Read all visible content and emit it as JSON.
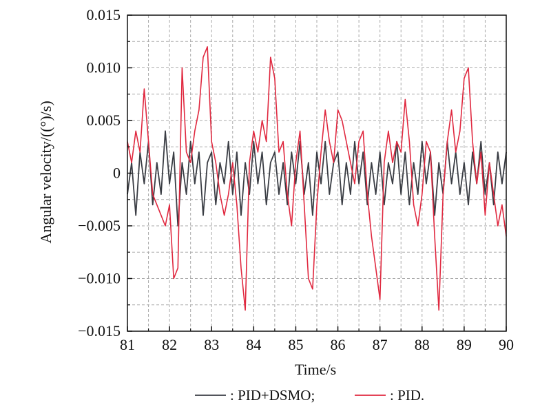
{
  "chart_data": {
    "type": "line",
    "xlabel": "Time/s",
    "ylabel": "Angular velocity/((°)/s)",
    "xlim": [
      81,
      90
    ],
    "ylim": [
      -0.015,
      0.015
    ],
    "x_ticks": [
      81,
      82,
      83,
      84,
      85,
      86,
      87,
      88,
      89,
      90
    ],
    "x_tick_labels": [
      "81",
      "82",
      "83",
      "84",
      "85",
      "86",
      "87",
      "88",
      "89",
      "90"
    ],
    "y_ticks": [
      0.015,
      0.01,
      0.005,
      0,
      -0.005,
      -0.01,
      -0.015
    ],
    "y_tick_labels": [
      "0.015",
      "0.010",
      "0.005",
      "0",
      "−0.005",
      "−0.010",
      "−0.015"
    ],
    "grid": true,
    "grid_style": "dashed",
    "legend_position": "bottom",
    "series": [
      {
        "name": ": PID+DSMO;",
        "color": "#3a3d44",
        "x": [
          81.0,
          81.1,
          81.2,
          81.3,
          81.4,
          81.5,
          81.6,
          81.7,
          81.8,
          81.9,
          82.0,
          82.1,
          82.2,
          82.3,
          82.4,
          82.5,
          82.6,
          82.7,
          82.8,
          82.9,
          83.0,
          83.1,
          83.2,
          83.3,
          83.4,
          83.5,
          83.6,
          83.7,
          83.8,
          83.9,
          84.0,
          84.1,
          84.2,
          84.3,
          84.4,
          84.5,
          84.6,
          84.7,
          84.8,
          84.9,
          85.0,
          85.1,
          85.2,
          85.3,
          85.4,
          85.5,
          85.6,
          85.7,
          85.8,
          85.9,
          86.0,
          86.1,
          86.2,
          86.3,
          86.4,
          86.5,
          86.6,
          86.7,
          86.8,
          86.9,
          87.0,
          87.1,
          87.2,
          87.3,
          87.4,
          87.5,
          87.6,
          87.7,
          87.8,
          87.9,
          88.0,
          88.1,
          88.2,
          88.3,
          88.4,
          88.5,
          88.6,
          88.7,
          88.8,
          88.9,
          89.0,
          89.1,
          89.2,
          89.3,
          89.4,
          89.5,
          89.6,
          89.7,
          89.8,
          89.9,
          90.0
        ],
        "y": [
          -0.002,
          0.001,
          -0.004,
          0.002,
          -0.001,
          0.003,
          -0.003,
          0.001,
          -0.002,
          0.004,
          -0.001,
          0.002,
          -0.005,
          0.001,
          -0.002,
          0.003,
          -0.001,
          0.002,
          -0.004,
          0.001,
          0.002,
          -0.003,
          0.001,
          -0.001,
          0.003,
          -0.002,
          0.002,
          -0.004,
          0.001,
          -0.002,
          0.003,
          -0.001,
          0.002,
          -0.003,
          0.001,
          0.002,
          -0.002,
          0.001,
          -0.003,
          0.002,
          -0.001,
          0.003,
          -0.002,
          0.001,
          -0.004,
          0.002,
          -0.001,
          0.003,
          -0.002,
          0.001,
          0.002,
          -0.003,
          0.001,
          -0.002,
          0.003,
          -0.001,
          0.002,
          -0.003,
          0.001,
          -0.002,
          0.002,
          -0.003,
          0.001,
          -0.001,
          0.003,
          -0.002,
          0.002,
          -0.003,
          0.001,
          -0.002,
          0.003,
          -0.001,
          0.002,
          -0.004,
          0.001,
          -0.002,
          0.003,
          -0.001,
          0.002,
          -0.002,
          0.001,
          -0.003,
          0.002,
          -0.001,
          0.003,
          -0.002,
          0.001,
          -0.003,
          0.002,
          -0.001,
          0.002
        ]
      },
      {
        "name": ": PID.",
        "color": "#e0283f",
        "x": [
          81.0,
          81.1,
          81.2,
          81.3,
          81.4,
          81.5,
          81.6,
          81.7,
          81.8,
          81.9,
          82.0,
          82.1,
          82.2,
          82.3,
          82.4,
          82.5,
          82.6,
          82.7,
          82.8,
          82.9,
          83.0,
          83.1,
          83.2,
          83.3,
          83.4,
          83.5,
          83.6,
          83.7,
          83.8,
          83.9,
          84.0,
          84.1,
          84.2,
          84.3,
          84.4,
          84.5,
          84.6,
          84.7,
          84.8,
          84.9,
          85.0,
          85.1,
          85.2,
          85.3,
          85.4,
          85.5,
          85.6,
          85.7,
          85.8,
          85.9,
          86.0,
          86.1,
          86.2,
          86.3,
          86.4,
          86.5,
          86.6,
          86.7,
          86.8,
          86.9,
          87.0,
          87.1,
          87.2,
          87.3,
          87.4,
          87.5,
          87.6,
          87.7,
          87.8,
          87.9,
          88.0,
          88.1,
          88.2,
          88.3,
          88.4,
          88.5,
          88.6,
          88.7,
          88.8,
          88.9,
          89.0,
          89.1,
          89.2,
          89.3,
          89.4,
          89.5,
          89.6,
          89.7,
          89.8,
          89.9,
          90.0
        ],
        "y": [
          0.003,
          0.001,
          0.004,
          0.002,
          0.008,
          0.003,
          -0.002,
          -0.003,
          -0.004,
          -0.005,
          -0.003,
          -0.01,
          -0.009,
          0.01,
          0.002,
          0.001,
          0.004,
          0.006,
          0.011,
          0.012,
          0.003,
          0.001,
          -0.002,
          -0.004,
          -0.002,
          0.001,
          -0.003,
          -0.009,
          -0.013,
          0.001,
          0.004,
          0.002,
          0.005,
          0.003,
          0.011,
          0.009,
          0.002,
          0.003,
          -0.002,
          -0.005,
          0.001,
          0.004,
          -0.003,
          -0.01,
          -0.011,
          -0.003,
          0.002,
          0.006,
          0.003,
          0.001,
          0.006,
          0.005,
          0.003,
          0.001,
          -0.001,
          0.003,
          0.004,
          -0.002,
          -0.006,
          -0.009,
          -0.012,
          0.001,
          0.004,
          0.001,
          0.003,
          0.002,
          0.007,
          0.003,
          -0.003,
          -0.005,
          -0.002,
          0.003,
          0.002,
          -0.006,
          -0.013,
          -0.002,
          0.003,
          0.006,
          0.002,
          0.004,
          0.009,
          0.01,
          0.003,
          -0.001,
          0.002,
          -0.004,
          0.001,
          -0.002,
          -0.005,
          -0.003,
          -0.006
        ]
      }
    ]
  }
}
